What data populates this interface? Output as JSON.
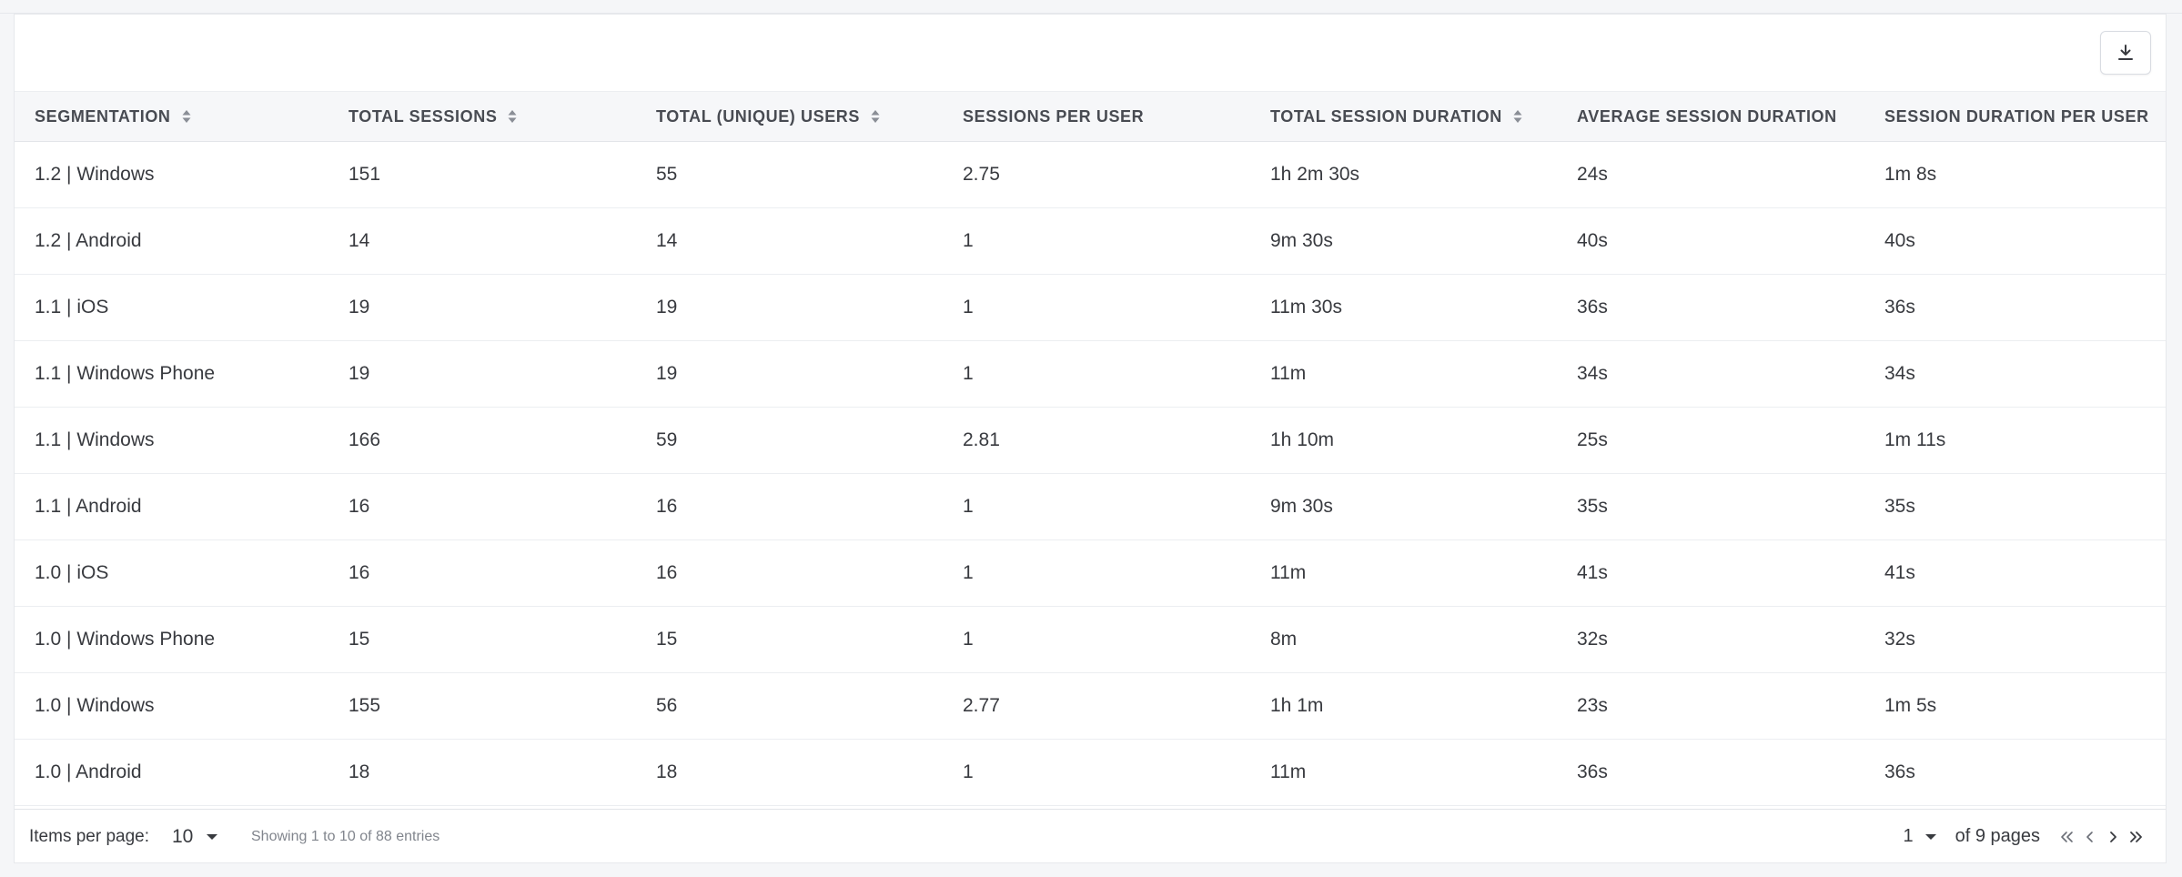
{
  "table": {
    "columns": [
      {
        "label": "SEGMENTATION",
        "sortable": true
      },
      {
        "label": "TOTAL SESSIONS",
        "sortable": true
      },
      {
        "label": "TOTAL (UNIQUE) USERS",
        "sortable": true
      },
      {
        "label": "SESSIONS PER USER",
        "sortable": false
      },
      {
        "label": "TOTAL SESSION DURATION",
        "sortable": true
      },
      {
        "label": "AVERAGE SESSION DURATION",
        "sortable": false
      },
      {
        "label": "SESSION DURATION PER USER",
        "sortable": false
      }
    ],
    "rows": [
      [
        "1.2 | Windows",
        "151",
        "55",
        "2.75",
        "1h 2m 30s",
        "24s",
        "1m 8s"
      ],
      [
        "1.2 | Android",
        "14",
        "14",
        "1",
        "9m 30s",
        "40s",
        "40s"
      ],
      [
        "1.1 | iOS",
        "19",
        "19",
        "1",
        "11m 30s",
        "36s",
        "36s"
      ],
      [
        "1.1 | Windows Phone",
        "19",
        "19",
        "1",
        "11m",
        "34s",
        "34s"
      ],
      [
        "1.1 | Windows",
        "166",
        "59",
        "2.81",
        "1h 10m",
        "25s",
        "1m 11s"
      ],
      [
        "1.1 | Android",
        "16",
        "16",
        "1",
        "9m 30s",
        "35s",
        "35s"
      ],
      [
        "1.0 | iOS",
        "16",
        "16",
        "1",
        "11m",
        "41s",
        "41s"
      ],
      [
        "1.0 | Windows Phone",
        "15",
        "15",
        "1",
        "8m",
        "32s",
        "32s"
      ],
      [
        "1.0 | Windows",
        "155",
        "56",
        "2.77",
        "1h 1m",
        "23s",
        "1m 5s"
      ],
      [
        "1.0 | Android",
        "18",
        "18",
        "1",
        "11m",
        "36s",
        "36s"
      ]
    ]
  },
  "toolbar": {
    "export_icon": "download-icon"
  },
  "footer": {
    "items_per_page_label": "Items per page:",
    "items_per_page_value": "10",
    "showing_text": "Showing 1 to 10 of 88 entries",
    "page_value": "1",
    "of_pages_text": "of 9 pages"
  },
  "icons": {
    "sort": "sort-icon",
    "dropdown": "chevron-down-icon",
    "first": "first-page-icon",
    "prev": "prev-page-icon",
    "next": "next-page-icon",
    "last": "last-page-icon"
  },
  "colors": {
    "header_bg": "#f6f7f9",
    "border": "#e3e5e9",
    "text": "#383a3f",
    "muted": "#81858d"
  }
}
